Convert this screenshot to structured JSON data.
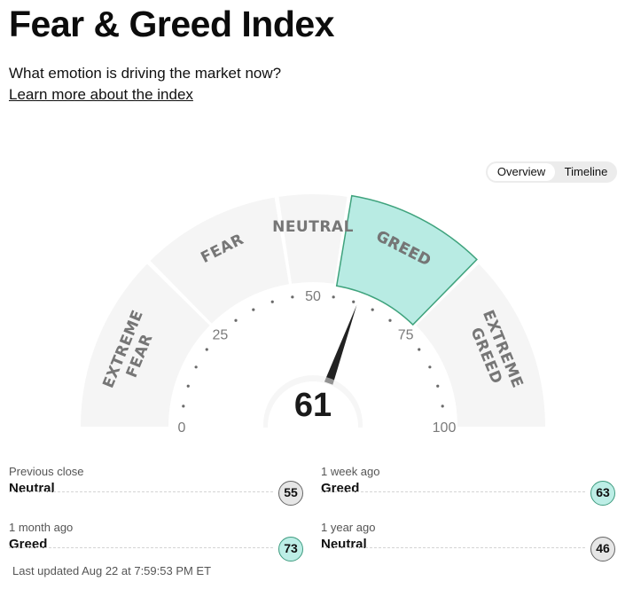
{
  "header": {
    "title": "Fear & Greed Index",
    "subtitle": "What emotion is driving the market now?",
    "learn_more": "Learn more about the index"
  },
  "toggle": {
    "overview": "Overview",
    "timeline": "Timeline",
    "selected": "Overview"
  },
  "gauge": {
    "value": "61",
    "segments": [
      "EXTREME FEAR",
      "FEAR",
      "NEUTRAL",
      "GREED",
      "EXTREME GREED"
    ],
    "active_segment": "GREED",
    "ticks": [
      "0",
      "25",
      "50",
      "75",
      "100"
    ],
    "colors": {
      "segment": "#f5f5f5",
      "active_fill": "#b8ebe3",
      "active_stroke": "#3fa37d",
      "label": "#767676",
      "needle": "#222222"
    }
  },
  "history": [
    {
      "period": "Previous close",
      "label": "Neutral",
      "value": "55",
      "kind": "neutral"
    },
    {
      "period": "1 week ago",
      "label": "Greed",
      "value": "63",
      "kind": "greed"
    },
    {
      "period": "1 month ago",
      "label": "Greed",
      "value": "73",
      "kind": "greed"
    },
    {
      "period": "1 year ago",
      "label": "Neutral",
      "value": "46",
      "kind": "neutral"
    }
  ],
  "footer": {
    "last_updated": "Last updated Aug 22 at 7:59:53 PM ET"
  }
}
